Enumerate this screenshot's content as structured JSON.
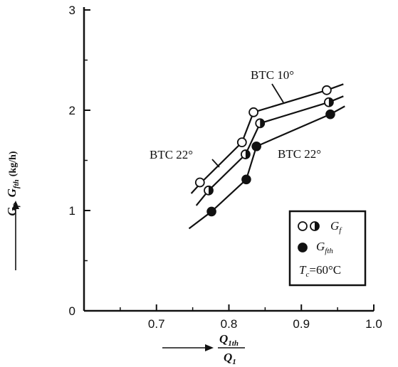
{
  "chart_data": {
    "type": "line",
    "xlim": [
      0.6,
      1.0
    ],
    "ylim": [
      0,
      3
    ],
    "x_ticks": [
      "0.7",
      "0.8",
      "0.9",
      "1.0"
    ],
    "y_ticks": [
      "0",
      "1",
      "2",
      "3"
    ],
    "xlabel": {
      "numerator_main": "Q",
      "numerator_sub": "1th",
      "denominator_main": "Q",
      "denominator_sub": "1"
    },
    "ylabel": {
      "g1": "G",
      "g1_sub": "f",
      "sep": ",",
      "g2": "G",
      "g2_sub": "fth",
      "unit": "(kg/h)"
    },
    "series": [
      {
        "marker": "open-circle",
        "points": [
          [
            0.76,
            1.28
          ],
          [
            0.818,
            1.68
          ],
          [
            0.834,
            1.98
          ],
          [
            0.935,
            2.2
          ]
        ],
        "line": [
          [
            0.748,
            1.17
          ],
          [
            0.762,
            1.28
          ],
          [
            0.818,
            1.68
          ],
          [
            0.834,
            1.98
          ],
          [
            0.935,
            2.2
          ],
          [
            0.958,
            2.26
          ]
        ]
      },
      {
        "marker": "half-circle",
        "points": [
          [
            0.772,
            1.2
          ],
          [
            0.823,
            1.56
          ],
          [
            0.843,
            1.87
          ],
          [
            0.938,
            2.08
          ]
        ],
        "line": [
          [
            0.755,
            1.05
          ],
          [
            0.772,
            1.2
          ],
          [
            0.823,
            1.56
          ],
          [
            0.843,
            1.87
          ],
          [
            0.938,
            2.08
          ],
          [
            0.958,
            2.14
          ]
        ]
      },
      {
        "marker": "filled-circle",
        "points": [
          [
            0.776,
            0.99
          ],
          [
            0.824,
            1.31
          ],
          [
            0.838,
            1.64
          ],
          [
            0.94,
            1.96
          ]
        ],
        "line": [
          [
            0.745,
            0.82
          ],
          [
            0.776,
            0.99
          ],
          [
            0.824,
            1.31
          ],
          [
            0.838,
            1.64
          ],
          [
            0.94,
            1.96
          ],
          [
            0.96,
            2.04
          ]
        ]
      }
    ],
    "annotations": {
      "btc10": "BTC 10°",
      "btc22_left": "BTC 22°",
      "btc22_right": "BTC 22°"
    },
    "legend": {
      "placement": "right",
      "gf_main": "G",
      "gf_sub": "f",
      "gfth_main": "G",
      "gfth_sub": "fth",
      "tc_main": "T",
      "tc_sub": "c",
      "tc_value": "=60°C"
    }
  }
}
